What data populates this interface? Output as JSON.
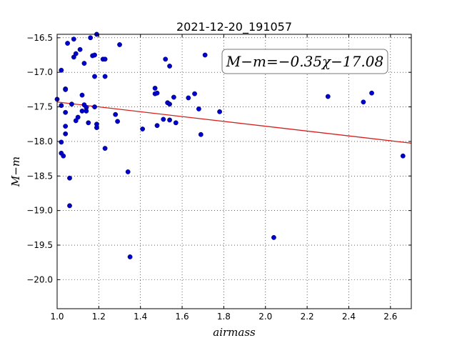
{
  "chart_data": {
    "type": "scatter",
    "title": "2021-12-20_191057",
    "xlabel": "airmass",
    "ylabel": "M−m",
    "xlim": [
      1.0,
      2.7
    ],
    "ylim": [
      -16.45,
      -20.42
    ],
    "y_inverted": true,
    "grid": true,
    "xticks": [
      1.0,
      1.2,
      1.4,
      1.6,
      1.8,
      2.0,
      2.2,
      2.4,
      2.6
    ],
    "xtick_labels": [
      "1.0",
      "1.2",
      "1.4",
      "1.6",
      "1.8",
      "2.0",
      "2.2",
      "2.4",
      "2.6"
    ],
    "yticks": [
      -16.5,
      -17.0,
      -17.5,
      -18.0,
      -18.5,
      -19.0,
      -19.5,
      -20.0
    ],
    "ytick_labels": [
      "−16.5",
      "−17.0",
      "−17.5",
      "−18.0",
      "−18.5",
      "−19.0",
      "−19.5",
      "−20.0"
    ],
    "annotation": "M−m=−0.35χ−17.08",
    "fit": {
      "slope": -0.35,
      "intercept": -17.08,
      "color": "#d62020"
    },
    "marker_color": "#0000cc",
    "points": [
      [
        1.0,
        -17.39
      ],
      [
        1.02,
        -16.97
      ],
      [
        1.02,
        -17.48
      ],
      [
        1.02,
        -18.01
      ],
      [
        1.02,
        -18.17
      ],
      [
        1.03,
        -18.21
      ],
      [
        1.04,
        -17.24
      ],
      [
        1.04,
        -17.25
      ],
      [
        1.04,
        -17.58
      ],
      [
        1.04,
        -17.78
      ],
      [
        1.04,
        -17.89
      ],
      [
        1.05,
        -16.58
      ],
      [
        1.06,
        -18.53
      ],
      [
        1.06,
        -18.93
      ],
      [
        1.07,
        -17.46
      ],
      [
        1.08,
        -16.52
      ],
      [
        1.08,
        -16.78
      ],
      [
        1.09,
        -16.73
      ],
      [
        1.09,
        -17.7
      ],
      [
        1.1,
        -17.65
      ],
      [
        1.11,
        -16.67
      ],
      [
        1.12,
        -17.33
      ],
      [
        1.12,
        -17.56
      ],
      [
        1.13,
        -17.47
      ],
      [
        1.13,
        -16.87
      ],
      [
        1.14,
        -17.51
      ],
      [
        1.14,
        -17.56
      ],
      [
        1.15,
        -17.73
      ],
      [
        1.16,
        -16.5
      ],
      [
        1.17,
        -16.76
      ],
      [
        1.18,
        -16.75
      ],
      [
        1.18,
        -17.06
      ],
      [
        1.18,
        -17.5
      ],
      [
        1.19,
        -16.45
      ],
      [
        1.19,
        -17.75
      ],
      [
        1.19,
        -17.8
      ],
      [
        1.22,
        -16.81
      ],
      [
        1.23,
        -16.81
      ],
      [
        1.23,
        -17.06
      ],
      [
        1.23,
        -18.1
      ],
      [
        1.28,
        -17.61
      ],
      [
        1.29,
        -17.71
      ],
      [
        1.3,
        -16.6
      ],
      [
        1.34,
        -18.44
      ],
      [
        1.35,
        -19.67
      ],
      [
        1.41,
        -17.82
      ],
      [
        1.47,
        -17.23
      ],
      [
        1.47,
        -17.31
      ],
      [
        1.48,
        -17.3
      ],
      [
        1.48,
        -17.77
      ],
      [
        1.51,
        -17.68
      ],
      [
        1.52,
        -16.81
      ],
      [
        1.53,
        -17.44
      ],
      [
        1.54,
        -16.91
      ],
      [
        1.54,
        -17.46
      ],
      [
        1.54,
        -17.69
      ],
      [
        1.56,
        -17.36
      ],
      [
        1.57,
        -17.73
      ],
      [
        1.63,
        -17.37
      ],
      [
        1.66,
        -17.31
      ],
      [
        1.68,
        -17.53
      ],
      [
        1.69,
        -17.9
      ],
      [
        1.71,
        -16.75
      ],
      [
        1.78,
        -17.57
      ],
      [
        2.04,
        -19.39
      ],
      [
        2.3,
        -17.35
      ],
      [
        2.47,
        -17.43
      ],
      [
        2.51,
        -17.3
      ],
      [
        2.66,
        -18.21
      ]
    ]
  }
}
